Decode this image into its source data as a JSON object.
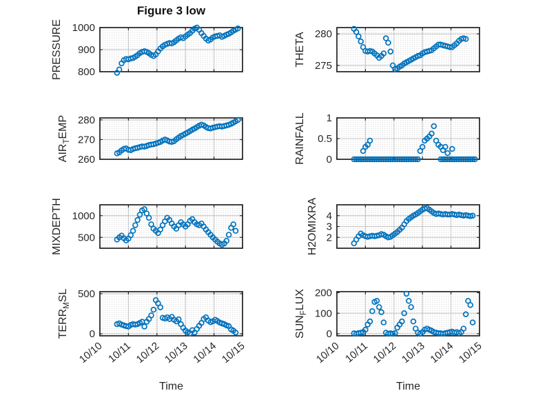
{
  "figure": {
    "title": "Figure 3 low",
    "xlabel": "Time",
    "background": "#ffffff"
  },
  "style": {
    "marker_color": "#0072BD",
    "axes_color": "#1f1f1f",
    "text_color": "#262626",
    "major_grid_color": "#c2c2c2",
    "minor_dot_color": "#c8c8c8"
  },
  "chart_data": {
    "type": "scatter",
    "marker": "open-circle",
    "grid": "major-solid-minor-dotted",
    "layout": "4x2-subplots",
    "x_axis": {
      "label": "Time",
      "xlim": [
        0,
        5
      ],
      "ticks": [
        0,
        1,
        2,
        3,
        4,
        5
      ],
      "tick_labels": [
        "10/10",
        "10/11",
        "10/12",
        "10/13",
        "10/14",
        "10/15"
      ],
      "tick_label_rotation_deg": 40
    },
    "x_days": [
      0.6,
      0.68,
      0.76,
      0.84,
      0.92,
      1,
      1.08,
      1.16,
      1.24,
      1.32,
      1.4,
      1.48,
      1.56,
      1.64,
      1.72,
      1.8,
      1.88,
      1.96,
      2.04,
      2.12,
      2.2,
      2.28,
      2.36,
      2.44,
      2.52,
      2.6,
      2.68,
      2.76,
      2.84,
      2.92,
      3,
      3.08,
      3.16,
      3.24,
      3.32,
      3.4,
      3.48,
      3.56,
      3.64,
      3.72,
      3.8,
      3.88,
      3.96,
      4.04,
      4.12,
      4.2,
      4.28,
      4.36,
      4.44,
      4.52,
      4.6,
      4.68,
      4.76,
      4.84
    ],
    "panels": [
      {
        "key": "pressure",
        "ylabel": "PRESSURE",
        "grid_pos": [
          0,
          0
        ],
        "ylim": [
          800,
          1000
        ],
        "yticks": [
          800,
          900,
          1000
        ],
        "y": [
          795,
          810,
          838,
          852,
          858,
          856,
          860,
          862,
          868,
          875,
          884,
          890,
          893,
          890,
          884,
          876,
          871,
          878,
          892,
          905,
          915,
          922,
          926,
          930,
          928,
          934,
          942,
          950,
          956,
          952,
          960,
          968,
          975,
          985,
          995,
          1000,
          990,
          975,
          962,
          950,
          941,
          946,
          955,
          960,
          962,
          965,
          958,
          962,
          968,
          972,
          978,
          985,
          991,
          996
        ]
      },
      {
        "key": "theta",
        "ylabel": "THETA",
        "grid_pos": [
          0,
          1
        ],
        "ylim": [
          274,
          281
        ],
        "yticks": [
          275,
          280
        ],
        "y": [
          280.8,
          280.3,
          279.6,
          278.8,
          277.9,
          277.3,
          277.2,
          277.3,
          277.2,
          276.9,
          276.6,
          276.2,
          276.5,
          276.9,
          279.3,
          278.6,
          277.2,
          275,
          274.4,
          274.5,
          274.8,
          275,
          275.3,
          275.5,
          275.7,
          275.9,
          276.1,
          276.3,
          276.5,
          276.6,
          276.9,
          277.1,
          277.2,
          277.3,
          277.4,
          277.7,
          278,
          278.3,
          278.3,
          278.2,
          278.1,
          278,
          277.9,
          277.9,
          278.2,
          278.5,
          278.9,
          279.2,
          279.3,
          279.2,
          null,
          null,
          null,
          null
        ]
      },
      {
        "key": "air_temp",
        "ylabel": "AIR_TEMP",
        "grid_pos": [
          1,
          0
        ],
        "ylim": [
          260,
          281
        ],
        "yticks": [
          260,
          270,
          280
        ],
        "y": [
          263,
          263.5,
          264.5,
          265.3,
          265.5,
          264.8,
          264.6,
          265.2,
          265.6,
          265.8,
          266.2,
          266.5,
          266.4,
          266.8,
          267.2,
          267.5,
          267.6,
          268,
          268.4,
          268.8,
          269.5,
          270,
          269.6,
          269,
          268.8,
          269.2,
          270.2,
          271,
          271.8,
          272.4,
          273,
          273.6,
          274.3,
          275,
          275.6,
          276.3,
          277,
          277.6,
          277.2,
          276.4,
          275.8,
          275.6,
          276,
          276.3,
          276.6,
          276.8,
          276.6,
          276.9,
          277.2,
          277.5,
          278,
          278.6,
          279.3,
          280
        ]
      },
      {
        "key": "rainfall",
        "ylabel": "RAINFALL",
        "grid_pos": [
          1,
          1
        ],
        "ylim": [
          0,
          1
        ],
        "yticks": [
          0,
          0.5,
          1
        ],
        "y": [
          0,
          0,
          0,
          0,
          0.2,
          0.3,
          0.35,
          0.45,
          0,
          0,
          0,
          0,
          0,
          0,
          0,
          0,
          0,
          0,
          0,
          0,
          0,
          0,
          0,
          0,
          0,
          0,
          0,
          0,
          0,
          0.2,
          0.3,
          0.45,
          0.5,
          0.55,
          0.62,
          0.8,
          0.45,
          0.35,
          0.3,
          0.22,
          0.3,
          0.15,
          0,
          0.25,
          0,
          0,
          0,
          0,
          0,
          0,
          0,
          0,
          0,
          0
        ],
        "extra_points": [
          {
            "x": 0.92,
            "y": 0
          },
          {
            "x": 1.0,
            "y": 0
          },
          {
            "x": 1.08,
            "y": 0
          },
          {
            "x": 1.16,
            "y": 0
          },
          {
            "x": 3.64,
            "y": 0
          },
          {
            "x": 3.72,
            "y": 0
          },
          {
            "x": 3.8,
            "y": 0
          },
          {
            "x": 3.88,
            "y": 0
          },
          {
            "x": 4.04,
            "y": 0
          }
        ]
      },
      {
        "key": "mixdepth",
        "ylabel": "MIXDEPTH",
        "grid_pos": [
          2,
          0
        ],
        "ylim": [
          250,
          1250
        ],
        "yticks": [
          500,
          1000
        ],
        "y": [
          450,
          500,
          540,
          480,
          430,
          470,
          550,
          650,
          780,
          900,
          1020,
          1120,
          1150,
          1050,
          950,
          800,
          700,
          650,
          600,
          680,
          780,
          870,
          950,
          900,
          820,
          750,
          700,
          780,
          850,
          800,
          750,
          800,
          880,
          920,
          850,
          800,
          780,
          820,
          750,
          680,
          620,
          560,
          500,
          450,
          400,
          360,
          330,
          360,
          420,
          560,
          720,
          800,
          650,
          null
        ]
      },
      {
        "key": "h2omixra",
        "ylabel": "H2OMIXRA",
        "grid_pos": [
          2,
          1
        ],
        "ylim": [
          1,
          5
        ],
        "yticks": [
          2,
          3,
          4
        ],
        "y": [
          1.45,
          1.8,
          2.1,
          2.35,
          2.2,
          2.1,
          2.05,
          2.1,
          2.15,
          2.1,
          2.15,
          2.2,
          2.3,
          2.25,
          2.1,
          2,
          2.05,
          2.2,
          2.35,
          2.5,
          2.7,
          2.9,
          3.2,
          3.5,
          3.7,
          3.85,
          4,
          4.1,
          4.25,
          4.4,
          4.55,
          4.65,
          4.7,
          4.55,
          4.4,
          4.25,
          4.15,
          4.2,
          4.15,
          4.1,
          4.15,
          4.1,
          4.1,
          4.15,
          4.1,
          4.05,
          4.1,
          4.05,
          4,
          4.05,
          4,
          3.95,
          4,
          null
        ]
      },
      {
        "key": "terr_msl",
        "ylabel": "TERR_MSL",
        "grid_pos": [
          3,
          0
        ],
        "ylim": [
          -25,
          525
        ],
        "yticks": [
          0,
          500
        ],
        "y": [
          120,
          130,
          115,
          105,
          95,
          90,
          110,
          120,
          115,
          120,
          135,
          150,
          90,
          150,
          185,
          230,
          300,
          420,
          380,
          330,
          200,
          190,
          205,
          185,
          210,
          175,
          155,
          180,
          120,
          75,
          40,
          20,
          5,
          45,
          15,
          60,
          100,
          135,
          185,
          205,
          165,
          145,
          155,
          175,
          160,
          140,
          130,
          120,
          105,
          95,
          55,
          40,
          15,
          null
        ]
      },
      {
        "key": "sun_flux",
        "ylabel": "SUN_FLUX",
        "grid_pos": [
          3,
          1
        ],
        "ylim": [
          -10,
          205
        ],
        "yticks": [
          0,
          100,
          200
        ],
        "y": [
          2,
          0,
          3,
          5,
          8,
          20,
          45,
          60,
          110,
          155,
          160,
          130,
          105,
          55,
          5,
          0,
          2,
          0,
          3,
          30,
          45,
          60,
          100,
          195,
          160,
          130,
          60,
          25,
          5,
          0,
          8,
          20,
          25,
          20,
          15,
          8,
          5,
          3,
          2,
          0,
          3,
          5,
          8,
          10,
          5,
          8,
          3,
          8,
          25,
          95,
          160,
          140,
          55,
          null
        ]
      }
    ]
  }
}
